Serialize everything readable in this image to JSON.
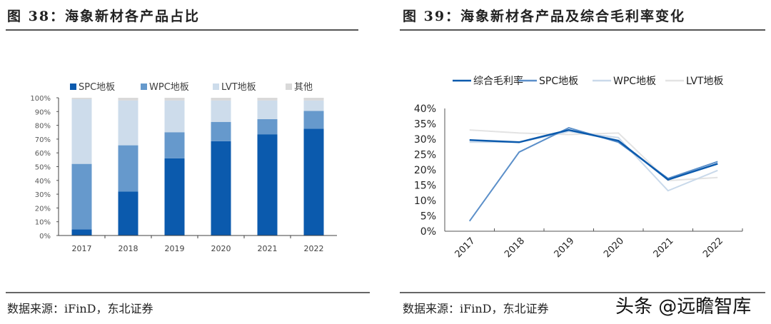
{
  "left": {
    "title": "图 38：海象新材各产品占比",
    "source": "数据来源：iFinD，东北证券"
  },
  "right": {
    "title": "图 39：海象新材各产品及综合毛利率变化",
    "source": "数据来源：iFinD，东北证券"
  },
  "watermark": "头条 @远瞻智库",
  "chart_data": [
    {
      "type": "bar",
      "stacked": true,
      "categories": [
        "2017",
        "2018",
        "2019",
        "2020",
        "2021",
        "2022"
      ],
      "series": [
        {
          "name": "SPC地板",
          "color": "#0b5aad",
          "values": [
            4.5,
            32,
            56,
            68.5,
            73.5,
            77.5
          ]
        },
        {
          "name": "WPC地板",
          "color": "#6699cc",
          "values": [
            47.5,
            33.5,
            19,
            14,
            11,
            13
          ]
        },
        {
          "name": "LVT地板",
          "color": "#cddceb",
          "values": [
            47,
            32.5,
            23,
            15.5,
            13.5,
            7.5
          ]
        },
        {
          "name": "其他",
          "color": "#d9d9d9",
          "values": [
            1,
            2,
            2,
            2,
            2,
            2
          ]
        }
      ],
      "yticks": [
        "0%",
        "10%",
        "20%",
        "30%",
        "40%",
        "50%",
        "60%",
        "70%",
        "80%",
        "90%",
        "100%"
      ],
      "ylim": [
        0,
        100
      ],
      "legend": "top",
      "grid": false
    },
    {
      "type": "line",
      "categories": [
        "2017",
        "2018",
        "2019",
        "2020",
        "2021",
        "2022"
      ],
      "series": [
        {
          "name": "综合毛利率",
          "color": "#0b5aad",
          "values": [
            29.7,
            29,
            33,
            29.5,
            16.8,
            22
          ]
        },
        {
          "name": "SPC地板",
          "color": "#5b8fc9",
          "values": [
            3.3,
            25.8,
            33.7,
            29,
            17.2,
            22.7
          ]
        },
        {
          "name": "WPC地板",
          "color": "#c9d9ea",
          "values": [
            29,
            29,
            32.5,
            30.5,
            13.2,
            19.8
          ]
        },
        {
          "name": "LVT地板",
          "color": "#e3e3e3",
          "values": [
            33,
            32,
            31.5,
            32,
            16.5,
            17.5
          ]
        }
      ],
      "yticks": [
        "0%",
        "5%",
        "10%",
        "15%",
        "20%",
        "25%",
        "30%",
        "35%",
        "40%"
      ],
      "ylim": [
        0,
        40
      ],
      "legend": "top",
      "grid": false
    }
  ]
}
